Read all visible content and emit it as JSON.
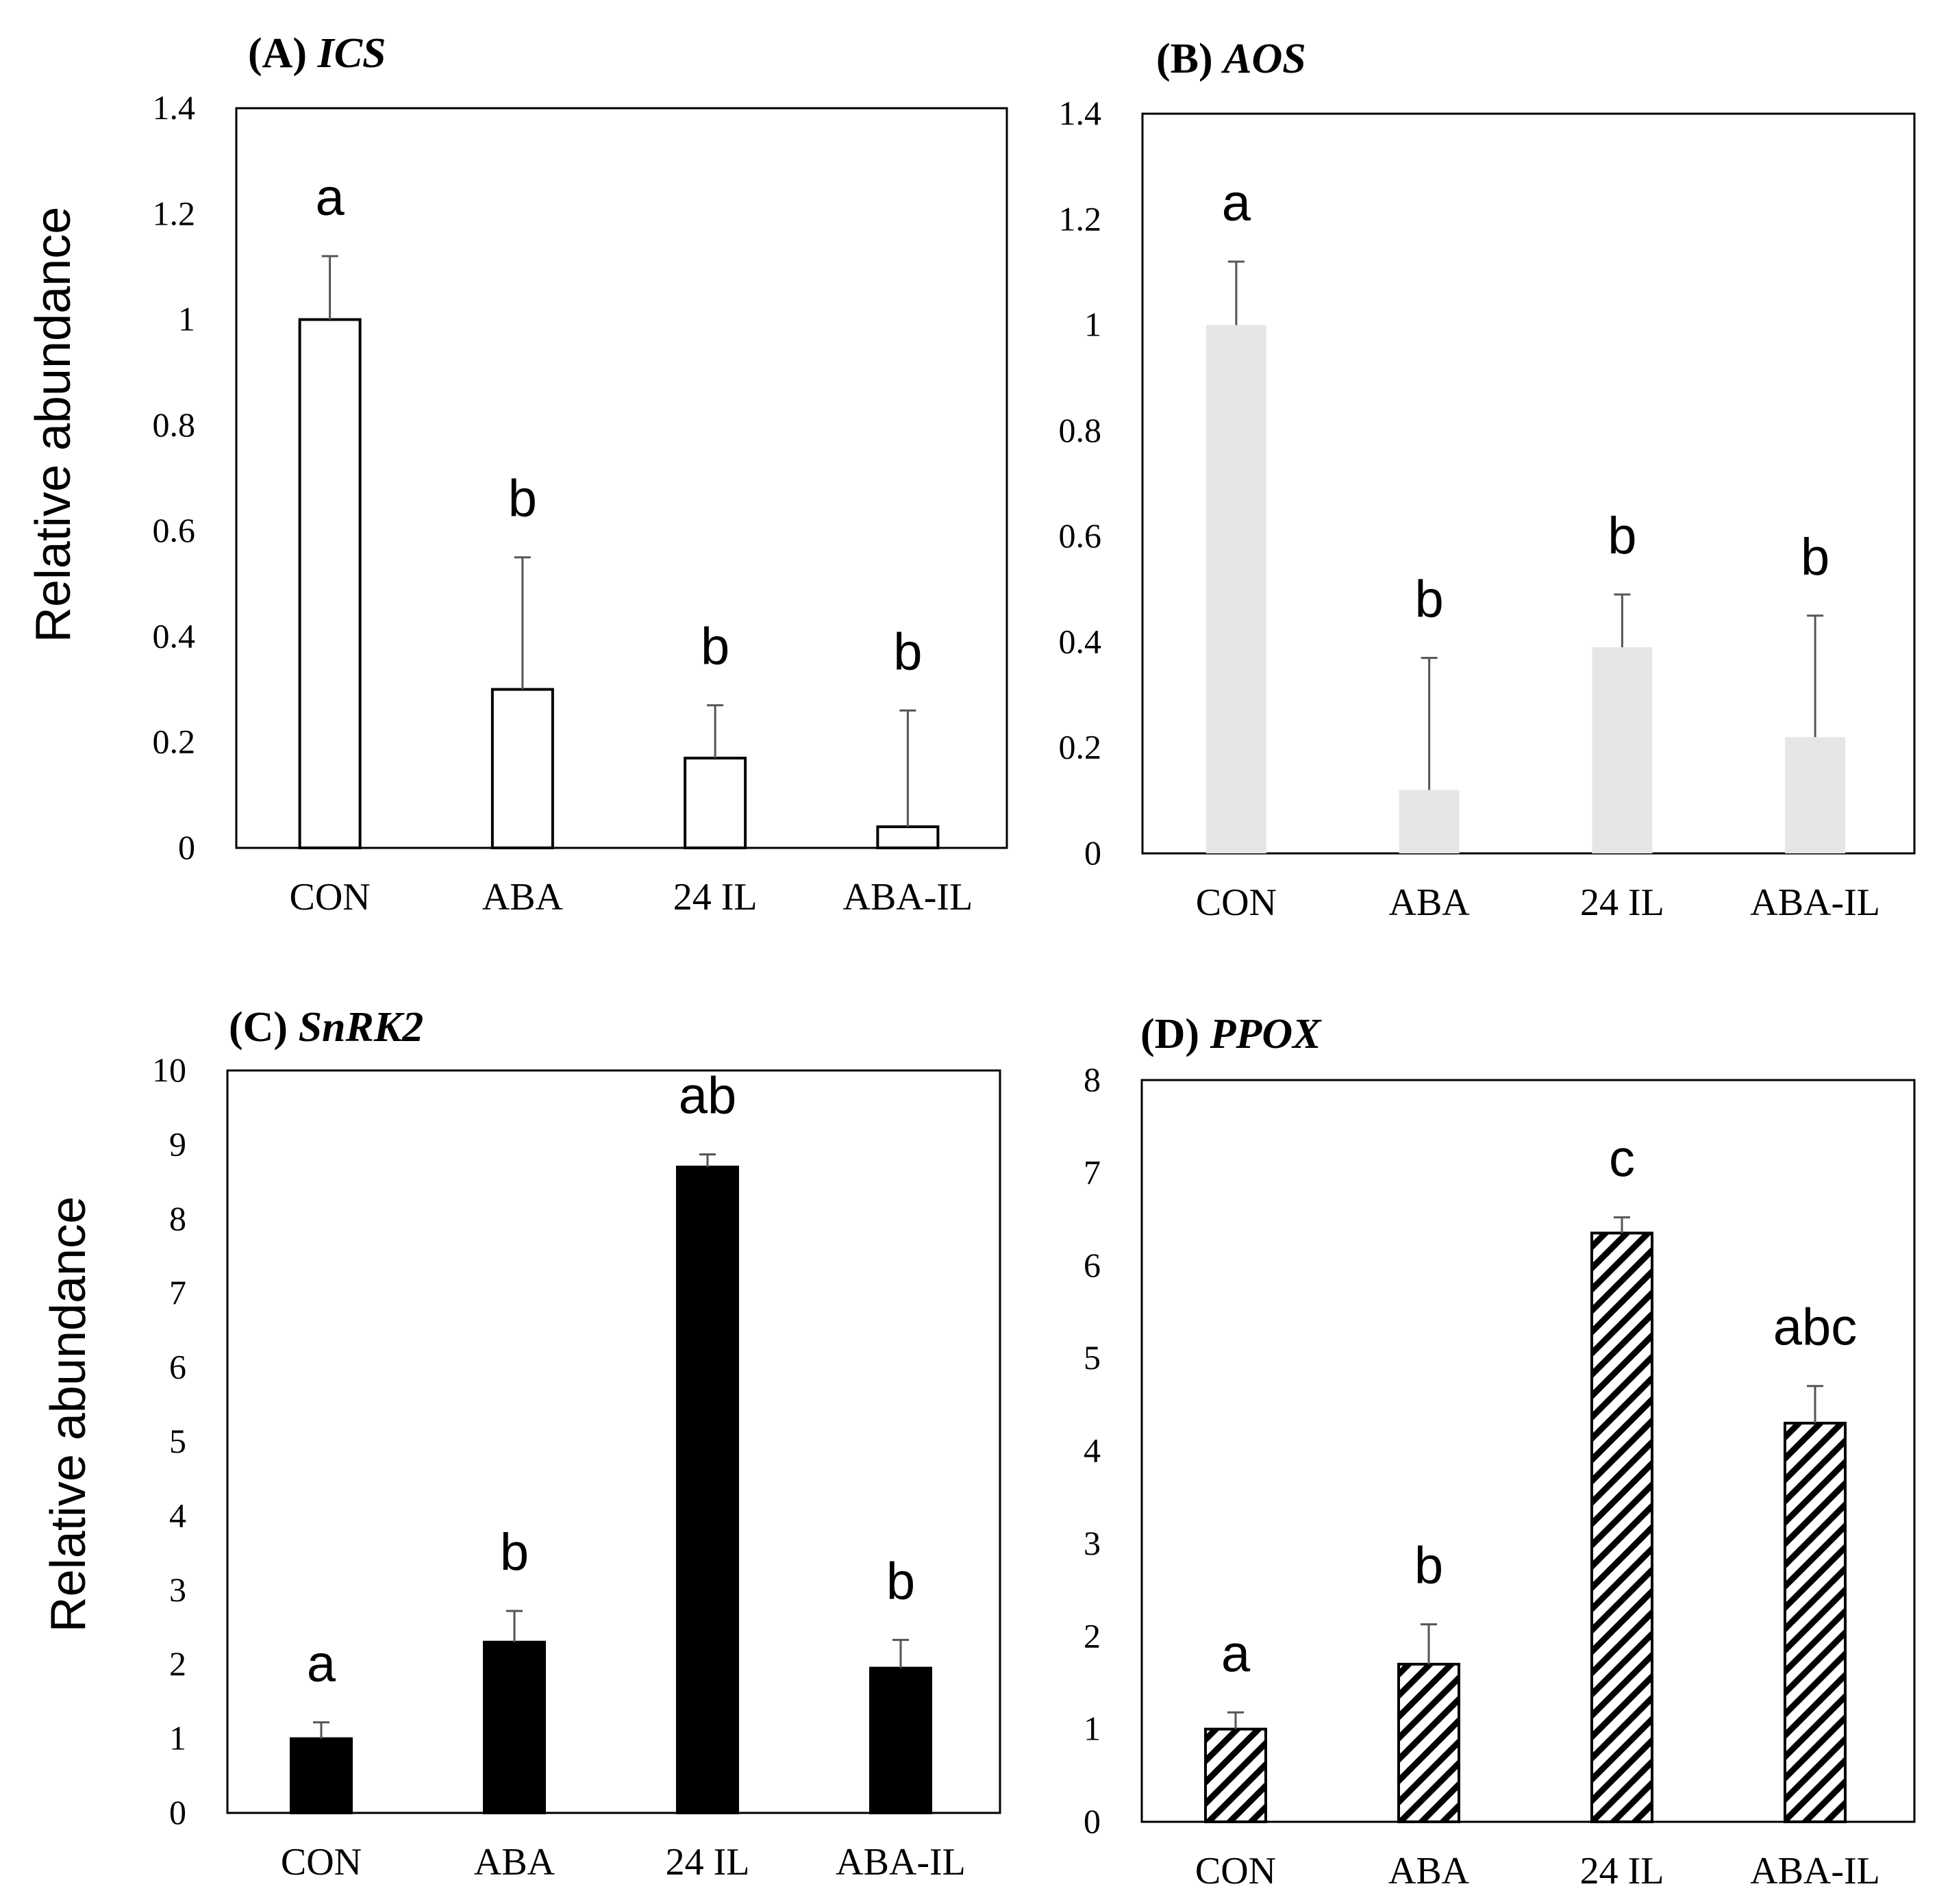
{
  "figure": {
    "ylabel": "Relative abundance",
    "categories": [
      "CON",
      "ABA",
      "24 IL",
      "ABA-IL"
    ]
  },
  "chart_data": [
    {
      "panel": "(A)",
      "gene": "ICS",
      "type": "bar",
      "style": "white",
      "categories": [
        "CON",
        "ABA",
        "24 IL",
        "ABA-IL"
      ],
      "values": [
        1.0,
        0.3,
        0.17,
        0.04
      ],
      "errors": [
        0.12,
        0.25,
        0.1,
        0.22
      ],
      "significance": [
        "a",
        "b",
        "b",
        "b"
      ],
      "ylabel": "Relative abundance",
      "ylim": [
        0,
        1.4
      ],
      "yticks": [
        "0",
        "0.2",
        "0.4",
        "0.6",
        "0.8",
        "1",
        "1.2",
        "1.4"
      ],
      "fill": "#ffffff",
      "stroke": "#000000"
    },
    {
      "panel": "(B)",
      "gene": "AOS",
      "type": "bar",
      "style": "gray",
      "categories": [
        "CON",
        "ABA",
        "24 IL",
        "ABA-IL"
      ],
      "values": [
        1.0,
        0.12,
        0.39,
        0.22
      ],
      "errors": [
        0.12,
        0.25,
        0.1,
        0.23
      ],
      "significance": [
        "a",
        "b",
        "b",
        "b"
      ],
      "ylabel": "",
      "ylim": [
        0,
        1.4
      ],
      "yticks": [
        "0",
        "0.2",
        "0.4",
        "0.6",
        "0.8",
        "1",
        "1.2",
        "1.4"
      ],
      "fill": "#e6e6e6",
      "stroke": "none"
    },
    {
      "panel": "(C)",
      "gene": "SnRK2",
      "type": "bar",
      "style": "black",
      "categories": [
        "CON",
        "ABA",
        "24 IL",
        "ABA-IL"
      ],
      "values": [
        1.0,
        2.3,
        8.7,
        1.95
      ],
      "errors": [
        0.22,
        0.42,
        0.17,
        0.38
      ],
      "significance": [
        "a",
        "b",
        "ab",
        "b"
      ],
      "ylabel": "Relative abundance",
      "ylim": [
        0,
        10
      ],
      "yticks": [
        "0",
        "1",
        "2",
        "3",
        "4",
        "5",
        "6",
        "7",
        "8",
        "9",
        "10"
      ],
      "fill": "#000000",
      "stroke": "#000000"
    },
    {
      "panel": "(D)",
      "gene": "PPOX",
      "type": "bar",
      "style": "hatch",
      "categories": [
        "CON",
        "ABA",
        "24 IL",
        "ABA-IL"
      ],
      "values": [
        1.0,
        1.7,
        6.35,
        4.3
      ],
      "errors": [
        0.18,
        0.43,
        0.17,
        0.4
      ],
      "significance": [
        "a",
        "b",
        "c",
        "abc"
      ],
      "ylabel": "",
      "ylim": [
        0,
        8
      ],
      "yticks": [
        "0",
        "1",
        "2",
        "3",
        "4",
        "5",
        "6",
        "7",
        "8"
      ],
      "fill": "hatch",
      "stroke": "#000000"
    }
  ]
}
